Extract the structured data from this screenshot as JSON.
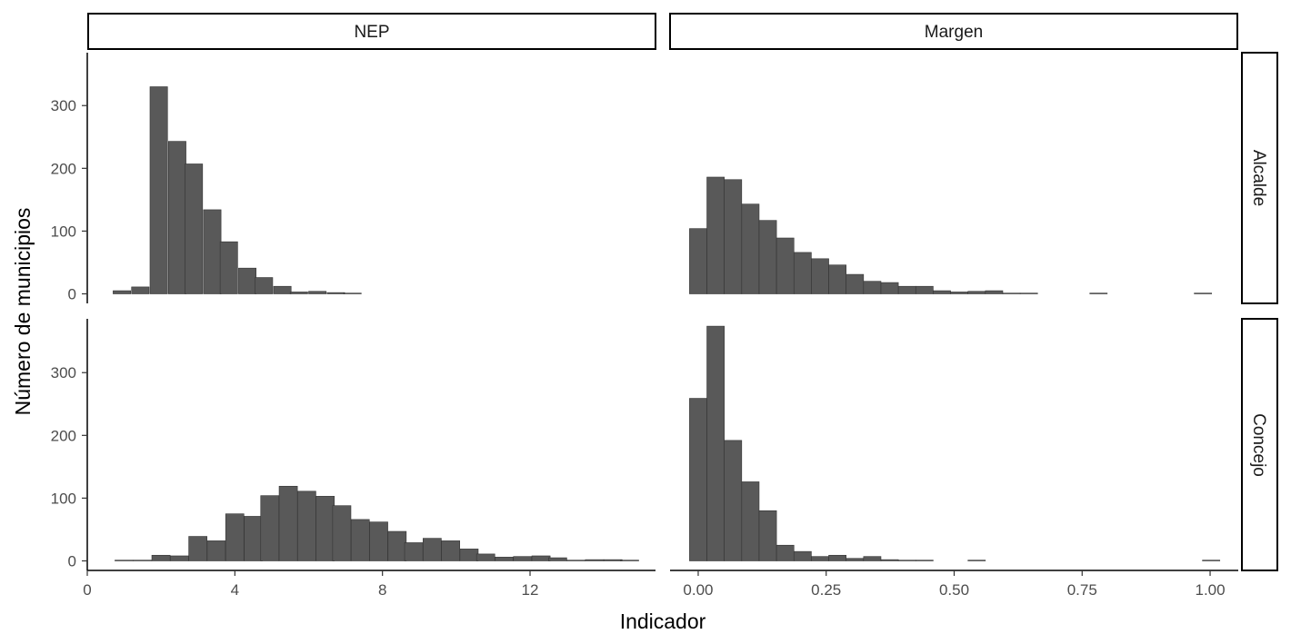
{
  "chart_data": {
    "type": "bar",
    "title": "",
    "xlabel": "Indicador",
    "ylabel": "Número de municipios",
    "ylim": [
      0,
      385
    ],
    "yticks": [
      0,
      100,
      200,
      300
    ],
    "ytick_labels": [
      "0",
      "100",
      "200",
      "300"
    ],
    "grid": false,
    "legend": "none",
    "bar_color": "#595959",
    "columns": [
      {
        "label": "NEP",
        "xlim": [
          0,
          15.4
        ],
        "xticks": [
          0,
          4,
          8,
          12
        ],
        "xtick_labels": [
          "0",
          "4",
          "8",
          "12"
        ]
      },
      {
        "label": "Margen",
        "xlim": [
          -0.055,
          1.055
        ],
        "xticks": [
          0,
          0.25,
          0.5,
          0.75,
          1.0
        ],
        "xtick_labels": [
          "0.00",
          "0.25",
          "0.50",
          "0.75",
          "1.00"
        ]
      }
    ],
    "rows": [
      {
        "label": "Alcalde"
      },
      {
        "label": "Concejo"
      }
    ],
    "panels": [
      {
        "row": "Alcalde",
        "column": "NEP",
        "bin_width": 0.475,
        "bins": [
          [
            0.7,
            5
          ],
          [
            1.2,
            11
          ],
          [
            1.7,
            330
          ],
          [
            2.2,
            243
          ],
          [
            2.65,
            207
          ],
          [
            3.15,
            134
          ],
          [
            3.6,
            83
          ],
          [
            4.1,
            41
          ],
          [
            4.55,
            26
          ],
          [
            5.05,
            12
          ],
          [
            5.5,
            3
          ],
          [
            6.0,
            4
          ],
          [
            6.5,
            2
          ],
          [
            6.95,
            1
          ]
        ]
      },
      {
        "row": "Alcalde",
        "column": "Margen",
        "bin_width": 0.034,
        "bins": [
          [
            -0.017,
            104
          ],
          [
            0.017,
            186
          ],
          [
            0.051,
            182
          ],
          [
            0.085,
            143
          ],
          [
            0.119,
            117
          ],
          [
            0.153,
            89
          ],
          [
            0.187,
            66
          ],
          [
            0.221,
            56
          ],
          [
            0.255,
            46
          ],
          [
            0.289,
            31
          ],
          [
            0.323,
            20
          ],
          [
            0.357,
            18
          ],
          [
            0.391,
            12
          ],
          [
            0.425,
            12
          ],
          [
            0.459,
            5
          ],
          [
            0.493,
            3
          ],
          [
            0.527,
            4
          ],
          [
            0.561,
            5
          ],
          [
            0.595,
            1
          ],
          [
            0.629,
            1
          ],
          [
            0.765,
            1
          ],
          [
            0.969,
            1
          ]
        ]
      },
      {
        "row": "Concejo",
        "column": "NEP",
        "bin_width": 0.495,
        "bins": [
          [
            0.75,
            1
          ],
          [
            1.25,
            1
          ],
          [
            1.75,
            9
          ],
          [
            2.25,
            8
          ],
          [
            2.75,
            39
          ],
          [
            3.25,
            32
          ],
          [
            3.75,
            75
          ],
          [
            4.25,
            71
          ],
          [
            4.7,
            104
          ],
          [
            5.2,
            119
          ],
          [
            5.7,
            111
          ],
          [
            6.2,
            103
          ],
          [
            6.65,
            88
          ],
          [
            7.15,
            66
          ],
          [
            7.65,
            62
          ],
          [
            8.15,
            47
          ],
          [
            8.6,
            29
          ],
          [
            9.1,
            36
          ],
          [
            9.6,
            32
          ],
          [
            10.1,
            19
          ],
          [
            10.55,
            11
          ],
          [
            11.05,
            6
          ],
          [
            11.55,
            7
          ],
          [
            12.05,
            8
          ],
          [
            12.5,
            5
          ],
          [
            13.0,
            1
          ],
          [
            13.5,
            2
          ],
          [
            14.0,
            2
          ],
          [
            14.45,
            1
          ]
        ]
      },
      {
        "row": "Concejo",
        "column": "Margen",
        "bin_width": 0.034,
        "bins": [
          [
            -0.017,
            259
          ],
          [
            0.017,
            374
          ],
          [
            0.051,
            192
          ],
          [
            0.085,
            126
          ],
          [
            0.119,
            80
          ],
          [
            0.153,
            25
          ],
          [
            0.187,
            15
          ],
          [
            0.221,
            7
          ],
          [
            0.255,
            9
          ],
          [
            0.289,
            4
          ],
          [
            0.323,
            7
          ],
          [
            0.357,
            2
          ],
          [
            0.391,
            1
          ],
          [
            0.425,
            1
          ],
          [
            0.527,
            1
          ],
          [
            0.985,
            1
          ]
        ]
      }
    ]
  }
}
